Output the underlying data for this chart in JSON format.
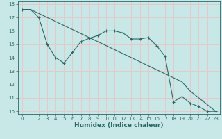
{
  "xlabel": "Humidex (Indice chaleur)",
  "ylabel": "",
  "xlim": [
    -0.5,
    23.5
  ],
  "ylim": [
    9.8,
    18.2
  ],
  "yticks": [
    10,
    11,
    12,
    13,
    14,
    15,
    16,
    17,
    18
  ],
  "xticks": [
    0,
    1,
    2,
    3,
    4,
    5,
    6,
    7,
    8,
    9,
    10,
    11,
    12,
    13,
    14,
    15,
    16,
    17,
    18,
    19,
    20,
    21,
    22,
    23
  ],
  "bg_color": "#c8e8e8",
  "line_color": "#2a6868",
  "grid_color": "#e8c8c8",
  "line1_x": [
    0,
    1,
    2,
    3,
    4,
    5,
    6,
    7,
    8,
    9,
    10,
    11,
    12,
    13,
    14,
    15,
    16,
    17,
    18,
    19,
    20,
    21,
    22,
    23
  ],
  "line1_y": [
    17.6,
    17.6,
    17.0,
    15.0,
    14.0,
    13.6,
    14.4,
    15.2,
    15.45,
    15.65,
    16.0,
    16.0,
    15.85,
    15.4,
    15.4,
    15.5,
    14.9,
    14.1,
    10.7,
    11.1,
    10.6,
    10.35,
    10.0,
    10.0
  ],
  "line2_x": [
    0,
    1,
    2,
    3,
    4,
    5,
    6,
    7,
    8,
    9,
    10,
    11,
    12,
    13,
    14,
    15,
    16,
    17,
    18,
    19,
    20,
    21,
    22,
    23
  ],
  "line2_y": [
    17.6,
    17.6,
    17.3,
    17.0,
    16.7,
    16.4,
    16.1,
    15.8,
    15.5,
    15.2,
    14.9,
    14.6,
    14.3,
    14.0,
    13.7,
    13.4,
    13.1,
    12.8,
    12.5,
    12.2,
    11.5,
    11.0,
    10.5,
    10.0
  ],
  "tick_fontsize": 5.0,
  "xlabel_fontsize": 6.5
}
